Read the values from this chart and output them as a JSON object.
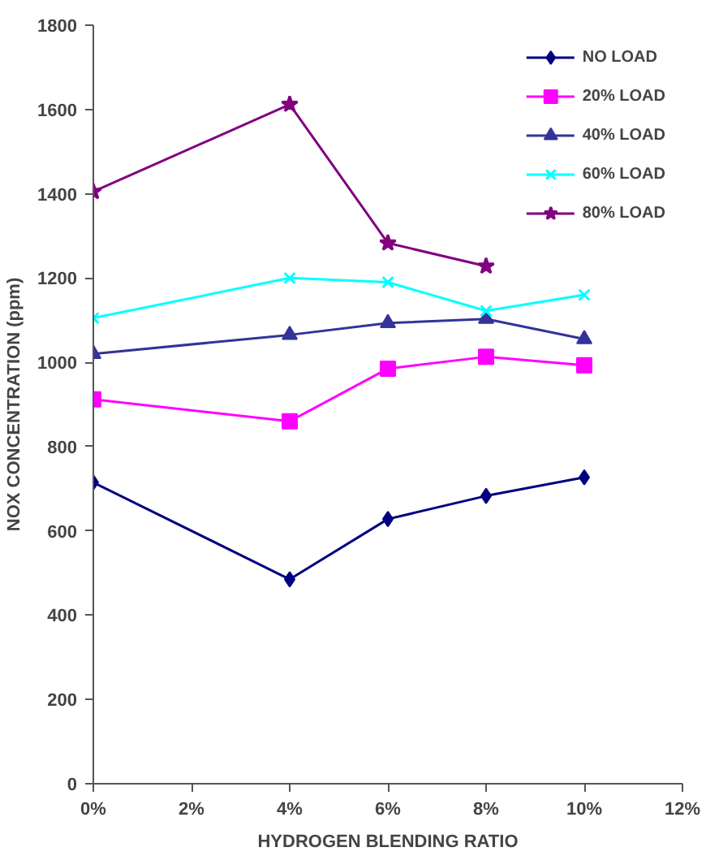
{
  "chart_data": {
    "type": "line",
    "xlabel": "HYDROGEN BLENDING RATIO",
    "ylabel": "NOX CONCENTRATION (ppm)",
    "x": [
      0,
      4,
      6,
      8,
      10
    ],
    "series": [
      {
        "name": "NO LOAD",
        "color": "#000080",
        "marker": "diamond",
        "values": [
          715,
          485,
          628,
          683,
          727
        ]
      },
      {
        "name": "20% LOAD",
        "color": "#ff00ff",
        "marker": "square",
        "values": [
          912,
          860,
          985,
          1013,
          993
        ]
      },
      {
        "name": "40% LOAD",
        "color": "#333399",
        "marker": "triangle",
        "values": [
          1020,
          1065,
          1093,
          1103,
          1055
        ]
      },
      {
        "name": "60% LOAD",
        "color": "#00ffff",
        "marker": "cross",
        "values": [
          1105,
          1200,
          1190,
          1122,
          1160
        ]
      },
      {
        "name": "80% LOAD",
        "color": "#800080",
        "marker": "star",
        "x": [
          0,
          4,
          6,
          8
        ],
        "values": [
          1405,
          1612,
          1283,
          1228
        ]
      }
    ],
    "xlim": [
      0,
      12
    ],
    "xticks": [
      {
        "value": 0,
        "label": "0%"
      },
      {
        "value": 2,
        "label": "2%"
      },
      {
        "value": 4,
        "label": "4%"
      },
      {
        "value": 6,
        "label": "6%"
      },
      {
        "value": 8,
        "label": "8%"
      },
      {
        "value": 10,
        "label": "10%"
      },
      {
        "value": 12,
        "label": "12%"
      }
    ],
    "ylim": [
      0,
      1800
    ],
    "yticks": [
      0,
      200,
      400,
      600,
      800,
      1000,
      1200,
      1400,
      1600,
      1800
    ],
    "grid": false,
    "legend": "top right",
    "line_style": "solid"
  }
}
